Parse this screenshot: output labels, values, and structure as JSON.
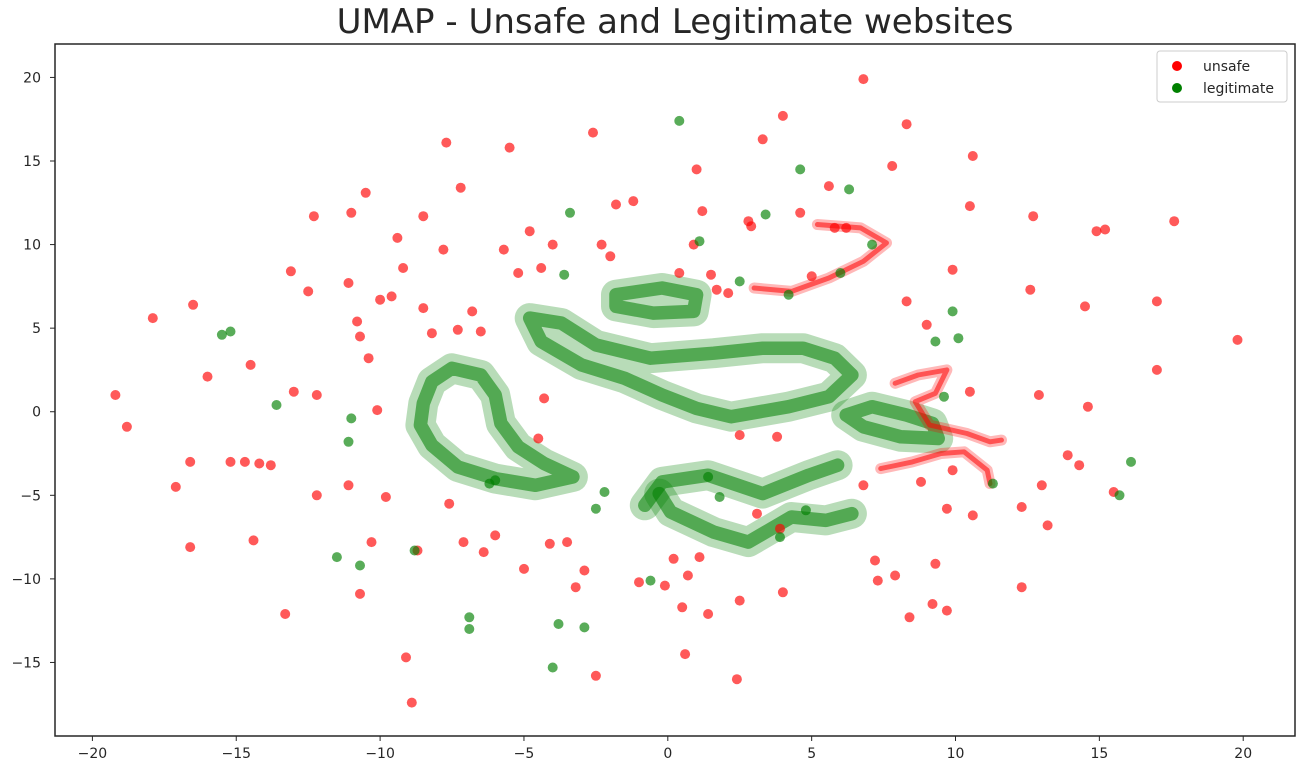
{
  "chart_data": {
    "type": "scatter",
    "title": "UMAP - Unsafe and Legitimate websites",
    "xlabel": "",
    "ylabel": "",
    "xlim": [
      -21.3,
      21.8
    ],
    "ylim": [
      -19.4,
      22.0
    ],
    "grid": false,
    "legend_position": "top-right",
    "x_ticks": [
      -20,
      -15,
      -10,
      -5,
      0,
      5,
      10,
      15,
      20
    ],
    "x_tick_labels": [
      "−20",
      "−15",
      "−10",
      "−5",
      "0",
      "5",
      "10",
      "15",
      "20"
    ],
    "y_ticks": [
      20,
      15,
      10,
      5,
      0,
      -5,
      -10,
      -15
    ],
    "y_tick_labels": [
      "20",
      "15",
      "10",
      "5",
      "0",
      "−5",
      "−10",
      "−15"
    ],
    "colors": {
      "unsafe": "#ff0000",
      "legitimate": "#008000"
    },
    "series": [
      {
        "name": "unsafe",
        "color": "#ff0000",
        "points": [
          [
            -19.2,
            1.0
          ],
          [
            -18.8,
            -0.9
          ],
          [
            -17.9,
            5.6
          ],
          [
            -17.1,
            -4.5
          ],
          [
            -16.6,
            -3.0
          ],
          [
            -16.6,
            -8.1
          ],
          [
            -16.5,
            6.4
          ],
          [
            -16.0,
            2.1
          ],
          [
            -15.2,
            -3.0
          ],
          [
            -14.7,
            -3.0
          ],
          [
            -14.5,
            2.8
          ],
          [
            -14.4,
            -7.7
          ],
          [
            -14.2,
            -3.1
          ],
          [
            -13.8,
            -3.2
          ],
          [
            -13.3,
            -12.1
          ],
          [
            -13.1,
            8.4
          ],
          [
            -13.0,
            1.2
          ],
          [
            -12.5,
            7.2
          ],
          [
            -12.3,
            11.7
          ],
          [
            -12.2,
            1.0
          ],
          [
            -12.2,
            -5.0
          ],
          [
            -11.1,
            7.7
          ],
          [
            -11.1,
            -4.4
          ],
          [
            -11.0,
            11.9
          ],
          [
            -10.8,
            5.4
          ],
          [
            -10.7,
            4.5
          ],
          [
            -10.7,
            -10.9
          ],
          [
            -10.5,
            13.1
          ],
          [
            -10.4,
            3.2
          ],
          [
            -10.3,
            -7.8
          ],
          [
            -10.1,
            0.1
          ],
          [
            -10.0,
            6.7
          ],
          [
            -9.8,
            -5.1
          ],
          [
            -9.6,
            6.9
          ],
          [
            -9.4,
            10.4
          ],
          [
            -9.2,
            8.6
          ],
          [
            -9.1,
            -14.7
          ],
          [
            -8.9,
            -17.4
          ],
          [
            -8.7,
            -8.3
          ],
          [
            -8.5,
            11.7
          ],
          [
            -8.5,
            6.2
          ],
          [
            -8.2,
            4.7
          ],
          [
            -7.8,
            9.7
          ],
          [
            -7.7,
            16.1
          ],
          [
            -7.6,
            -5.5
          ],
          [
            -7.3,
            4.9
          ],
          [
            -7.2,
            13.4
          ],
          [
            -7.1,
            -7.8
          ],
          [
            -6.8,
            6.0
          ],
          [
            -6.5,
            4.8
          ],
          [
            -6.4,
            -8.4
          ],
          [
            -6.0,
            -7.4
          ],
          [
            -5.7,
            9.7
          ],
          [
            -5.5,
            15.8
          ],
          [
            -5.2,
            8.3
          ],
          [
            -5.0,
            -9.4
          ],
          [
            -4.8,
            10.8
          ],
          [
            -4.5,
            -1.6
          ],
          [
            -4.4,
            8.6
          ],
          [
            -4.3,
            0.8
          ],
          [
            -4.1,
            -7.9
          ],
          [
            -4.0,
            10.0
          ],
          [
            -3.5,
            -7.8
          ],
          [
            -3.2,
            -10.5
          ],
          [
            -2.9,
            -9.5
          ],
          [
            -2.6,
            16.7
          ],
          [
            -2.5,
            -15.8
          ],
          [
            -2.3,
            10.0
          ],
          [
            -2.0,
            9.3
          ],
          [
            -1.8,
            12.4
          ],
          [
            -1.2,
            12.6
          ],
          [
            -1.0,
            -10.2
          ],
          [
            -0.1,
            -10.4
          ],
          [
            0.2,
            -8.8
          ],
          [
            0.4,
            8.3
          ],
          [
            0.5,
            -11.7
          ],
          [
            0.6,
            -14.5
          ],
          [
            0.7,
            -9.8
          ],
          [
            0.9,
            10.0
          ],
          [
            1.0,
            14.5
          ],
          [
            1.1,
            -8.7
          ],
          [
            1.2,
            12.0
          ],
          [
            1.4,
            -12.1
          ],
          [
            1.5,
            8.2
          ],
          [
            1.7,
            7.3
          ],
          [
            2.1,
            7.1
          ],
          [
            2.5,
            -11.3
          ],
          [
            2.4,
            -16.0
          ],
          [
            2.5,
            -1.4
          ],
          [
            2.8,
            11.4
          ],
          [
            2.9,
            11.1
          ],
          [
            3.1,
            -6.1
          ],
          [
            3.3,
            16.3
          ],
          [
            3.8,
            -1.5
          ],
          [
            3.9,
            -7.0
          ],
          [
            4.0,
            17.7
          ],
          [
            4.0,
            -10.8
          ],
          [
            4.6,
            11.9
          ],
          [
            5.0,
            8.1
          ],
          [
            5.6,
            13.5
          ],
          [
            5.8,
            11.0
          ],
          [
            6.2,
            11.0
          ],
          [
            6.8,
            19.9
          ],
          [
            6.8,
            -4.4
          ],
          [
            7.2,
            -8.9
          ],
          [
            7.3,
            -10.1
          ],
          [
            7.8,
            14.7
          ],
          [
            7.9,
            -9.8
          ],
          [
            8.3,
            17.2
          ],
          [
            8.3,
            6.6
          ],
          [
            8.4,
            -12.3
          ],
          [
            8.8,
            -4.2
          ],
          [
            9.0,
            5.2
          ],
          [
            9.2,
            -11.5
          ],
          [
            9.3,
            -9.1
          ],
          [
            9.7,
            -5.8
          ],
          [
            9.7,
            -11.9
          ],
          [
            9.9,
            8.5
          ],
          [
            9.9,
            -3.5
          ],
          [
            10.5,
            12.3
          ],
          [
            10.5,
            1.2
          ],
          [
            10.6,
            -6.2
          ],
          [
            10.6,
            15.3
          ],
          [
            12.3,
            -5.7
          ],
          [
            12.3,
            -10.5
          ],
          [
            12.6,
            7.3
          ],
          [
            12.7,
            11.7
          ],
          [
            12.9,
            1.0
          ],
          [
            13.0,
            -4.4
          ],
          [
            13.2,
            -6.8
          ],
          [
            13.9,
            -2.6
          ],
          [
            14.3,
            -3.2
          ],
          [
            14.5,
            6.3
          ],
          [
            14.6,
            0.3
          ],
          [
            14.9,
            10.8
          ],
          [
            15.2,
            10.9
          ],
          [
            15.5,
            -4.8
          ],
          [
            17.0,
            2.5
          ],
          [
            17.0,
            6.6
          ],
          [
            17.6,
            11.4
          ],
          [
            19.8,
            4.3
          ]
        ]
      },
      {
        "name": "legitimate",
        "color": "#008000",
        "points": [
          [
            -15.5,
            4.6
          ],
          [
            -15.2,
            4.8
          ],
          [
            -13.6,
            0.4
          ],
          [
            -11.5,
            -8.7
          ],
          [
            -11.1,
            -1.8
          ],
          [
            -11.0,
            -0.4
          ],
          [
            -10.7,
            -9.2
          ],
          [
            -8.8,
            -8.3
          ],
          [
            -6.9,
            -12.3
          ],
          [
            -6.9,
            -13.0
          ],
          [
            -6.2,
            -4.3
          ],
          [
            -6.0,
            -4.1
          ],
          [
            -4.0,
            -15.3
          ],
          [
            -3.8,
            -12.7
          ],
          [
            -3.6,
            8.2
          ],
          [
            -3.4,
            11.9
          ],
          [
            -2.9,
            -12.9
          ],
          [
            -2.5,
            -5.8
          ],
          [
            -2.2,
            -4.8
          ],
          [
            -0.6,
            -10.1
          ],
          [
            0.4,
            17.4
          ],
          [
            1.1,
            10.2
          ],
          [
            1.4,
            -3.9
          ],
          [
            1.8,
            -5.1
          ],
          [
            2.5,
            7.8
          ],
          [
            3.4,
            11.8
          ],
          [
            3.9,
            -7.5
          ],
          [
            4.2,
            7.0
          ],
          [
            4.6,
            14.5
          ],
          [
            4.8,
            -5.9
          ],
          [
            6.0,
            8.3
          ],
          [
            6.3,
            13.3
          ],
          [
            7.1,
            10.0
          ],
          [
            9.3,
            4.2
          ],
          [
            9.6,
            0.9
          ],
          [
            9.9,
            6.0
          ],
          [
            10.1,
            4.4
          ],
          [
            11.3,
            -4.3
          ],
          [
            15.7,
            -5.0
          ],
          [
            16.1,
            -3.0
          ]
        ]
      }
    ],
    "clusters": [
      {
        "series": "legitimate",
        "path": [
          [
            -8.5,
            0.5
          ],
          [
            -8.2,
            1.8
          ],
          [
            -7.5,
            2.6
          ],
          [
            -6.5,
            2.2
          ],
          [
            -6.0,
            1.0
          ],
          [
            -5.8,
            -0.7
          ],
          [
            -5.2,
            -2.1
          ],
          [
            -4.3,
            -3.1
          ],
          [
            -3.3,
            -3.9
          ],
          [
            -4.6,
            -4.4
          ],
          [
            -6.0,
            -4.0
          ],
          [
            -7.3,
            -3.3
          ],
          [
            -8.2,
            -2.0
          ],
          [
            -8.6,
            -0.8
          ],
          [
            -8.5,
            0.5
          ]
        ]
      },
      {
        "series": "legitimate",
        "path": [
          [
            -4.8,
            5.6
          ],
          [
            -3.7,
            5.3
          ],
          [
            -2.5,
            4.0
          ],
          [
            -0.6,
            3.2
          ],
          [
            1.6,
            3.5
          ],
          [
            3.3,
            3.8
          ],
          [
            4.7,
            3.8
          ],
          [
            5.8,
            3.2
          ],
          [
            6.4,
            2.2
          ],
          [
            5.6,
            0.9
          ],
          [
            4.2,
            0.3
          ],
          [
            3.2,
            0.0
          ],
          [
            2.2,
            -0.3
          ],
          [
            1.0,
            0.2
          ],
          [
            -0.2,
            1.0
          ],
          [
            -1.5,
            2.0
          ],
          [
            -3.0,
            2.8
          ],
          [
            -4.4,
            4.2
          ],
          [
            -4.8,
            5.6
          ]
        ]
      },
      {
        "series": "legitimate",
        "path": [
          [
            -1.8,
            7.0
          ],
          [
            -0.2,
            7.4
          ],
          [
            1.0,
            7.0
          ],
          [
            0.9,
            6.0
          ],
          [
            -0.5,
            5.9
          ],
          [
            -1.8,
            6.3
          ],
          [
            -1.8,
            7.0
          ]
        ]
      },
      {
        "series": "legitimate",
        "path": [
          [
            6.2,
            -0.2
          ],
          [
            7.1,
            0.3
          ],
          [
            8.3,
            -0.2
          ],
          [
            9.2,
            -0.7
          ],
          [
            9.4,
            -1.6
          ],
          [
            8.1,
            -1.5
          ],
          [
            6.8,
            -0.9
          ],
          [
            6.2,
            -0.2
          ]
        ]
      },
      {
        "series": "legitimate",
        "path": [
          [
            -0.8,
            -5.6
          ],
          [
            -0.2,
            -4.2
          ],
          [
            1.4,
            -3.8
          ],
          [
            3.3,
            -4.9
          ],
          [
            4.9,
            -3.8
          ],
          [
            5.9,
            -3.2
          ]
        ]
      },
      {
        "series": "legitimate",
        "path": [
          [
            -0.3,
            -4.9
          ],
          [
            0.1,
            -6.0
          ],
          [
            1.6,
            -7.2
          ],
          [
            2.8,
            -7.8
          ],
          [
            4.3,
            -6.3
          ],
          [
            5.5,
            -6.5
          ],
          [
            6.4,
            -6.1
          ]
        ]
      },
      {
        "series": "unsafe",
        "path": [
          [
            5.2,
            11.2
          ],
          [
            6.7,
            11.0
          ],
          [
            7.6,
            10.1
          ],
          [
            6.8,
            9.0
          ],
          [
            5.6,
            8.0
          ],
          [
            4.3,
            7.2
          ],
          [
            3.0,
            7.4
          ]
        ]
      },
      {
        "series": "unsafe",
        "path": [
          [
            7.9,
            1.7
          ],
          [
            8.7,
            2.2
          ],
          [
            9.7,
            2.5
          ],
          [
            9.3,
            1.1
          ],
          [
            8.6,
            0.6
          ],
          [
            9.1,
            -0.8
          ],
          [
            10.4,
            -1.3
          ],
          [
            11.2,
            -1.8
          ],
          [
            11.6,
            -1.7
          ]
        ]
      },
      {
        "series": "unsafe",
        "path": [
          [
            7.4,
            -3.4
          ],
          [
            8.5,
            -3.0
          ],
          [
            9.5,
            -2.5
          ],
          [
            10.3,
            -2.4
          ],
          [
            11.1,
            -3.5
          ],
          [
            11.2,
            -4.3
          ]
        ]
      }
    ]
  }
}
